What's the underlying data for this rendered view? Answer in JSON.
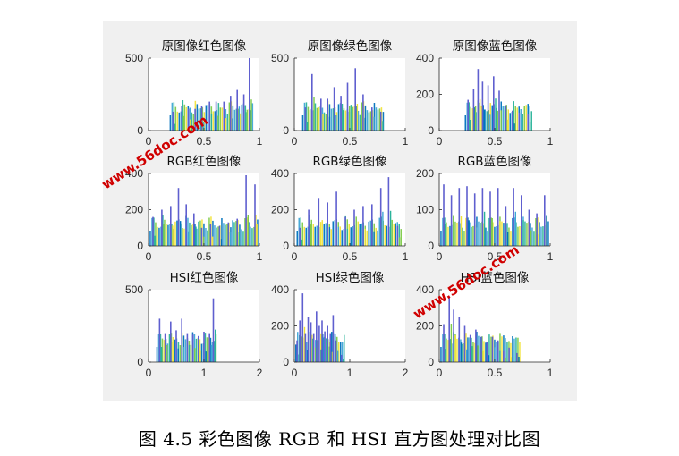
{
  "figure": {
    "background": "#f0f0f0",
    "axes_background": "#ffffff",
    "caption": "图 4.5  彩色图像 RGB 和 HSI 直方图处理对比图",
    "series_colors": [
      "#0072bd",
      "#3fa6d6",
      "#2ab39a",
      "#7ecb4a",
      "#f2e33b",
      "#5f5fcf"
    ],
    "watermark": {
      "text": "www.56doc.com",
      "color": "#d00000"
    }
  },
  "chart_data": [
    {
      "type": "bar",
      "title": "原图像红色图像",
      "xlim": [
        0,
        1
      ],
      "ylim": [
        0,
        500
      ],
      "xticks": [
        "0",
        "0.5",
        "1"
      ],
      "yticks": [
        "0",
        "500"
      ],
      "spikes": [
        [
          0.22,
          130
        ],
        [
          0.3,
          170
        ],
        [
          0.36,
          150
        ],
        [
          0.42,
          150
        ],
        [
          0.48,
          170
        ],
        [
          0.55,
          200
        ],
        [
          0.61,
          200
        ],
        [
          0.68,
          200
        ],
        [
          0.74,
          240
        ],
        [
          0.8,
          280
        ],
        [
          0.86,
          250
        ],
        [
          0.91,
          500
        ]
      ]
    },
    {
      "type": "bar",
      "title": "原图像绿色图像",
      "xlim": [
        0,
        1
      ],
      "ylim": [
        0,
        500
      ],
      "xticks": [
        "0",
        "0.5",
        "1"
      ],
      "yticks": [
        "0",
        "500"
      ],
      "spikes": [
        [
          0.1,
          160
        ],
        [
          0.16,
          390
        ],
        [
          0.24,
          220
        ],
        [
          0.3,
          220
        ],
        [
          0.36,
          300
        ],
        [
          0.42,
          240
        ],
        [
          0.48,
          330
        ],
        [
          0.55,
          430
        ],
        [
          0.62,
          250
        ],
        [
          0.7,
          160
        ],
        [
          0.78,
          130
        ]
      ]
    },
    {
      "type": "bar",
      "title": "原图像蓝色图像",
      "xlim": [
        0,
        1
      ],
      "ylim": [
        0,
        400
      ],
      "xticks": [
        "0",
        "0.5",
        "1"
      ],
      "yticks": [
        "0",
        "200",
        "400"
      ],
      "spikes": [
        [
          0.26,
          170
        ],
        [
          0.31,
          230
        ],
        [
          0.35,
          340
        ],
        [
          0.39,
          270
        ],
        [
          0.44,
          250
        ],
        [
          0.49,
          300
        ],
        [
          0.54,
          220
        ],
        [
          0.6,
          140
        ],
        [
          0.66,
          110
        ],
        [
          0.72,
          100
        ],
        [
          0.8,
          90
        ]
      ]
    },
    {
      "type": "bar",
      "title": "RGB红色图像",
      "xlim": [
        0,
        1
      ],
      "ylim": [
        0,
        400
      ],
      "xticks": [
        "0",
        "0.5",
        "1"
      ],
      "yticks": [
        "0",
        "200",
        "400"
      ],
      "spikes": [
        [
          0.04,
          160
        ],
        [
          0.12,
          200
        ],
        [
          0.2,
          220
        ],
        [
          0.27,
          320
        ],
        [
          0.34,
          230
        ],
        [
          0.41,
          180
        ],
        [
          0.48,
          100
        ],
        [
          0.56,
          120
        ],
        [
          0.64,
          110
        ],
        [
          0.72,
          130
        ],
        [
          0.8,
          150
        ],
        [
          0.88,
          390
        ],
        [
          0.96,
          340
        ]
      ]
    },
    {
      "type": "bar",
      "title": "RGB绿色图像",
      "xlim": [
        0,
        1
      ],
      "ylim": [
        0,
        400
      ],
      "xticks": [
        "0",
        "0.5",
        "1"
      ],
      "yticks": [
        "0",
        "200",
        "400"
      ],
      "spikes": [
        [
          0.05,
          100
        ],
        [
          0.13,
          200
        ],
        [
          0.22,
          260
        ],
        [
          0.3,
          240
        ],
        [
          0.38,
          300
        ],
        [
          0.46,
          160
        ],
        [
          0.54,
          200
        ],
        [
          0.62,
          220
        ],
        [
          0.7,
          230
        ],
        [
          0.78,
          320
        ],
        [
          0.85,
          380
        ],
        [
          0.93,
          110
        ]
      ]
    },
    {
      "type": "bar",
      "title": "RGB蓝色图像",
      "xlim": [
        0,
        1
      ],
      "ylim": [
        0,
        200
      ],
      "xticks": [
        "0",
        "0.5",
        "1"
      ],
      "yticks": [
        "0",
        "100",
        "200"
      ],
      "spikes": [
        [
          0.04,
          170
        ],
        [
          0.11,
          140
        ],
        [
          0.18,
          160
        ],
        [
          0.25,
          165
        ],
        [
          0.32,
          145
        ],
        [
          0.39,
          160
        ],
        [
          0.46,
          150
        ],
        [
          0.53,
          160
        ],
        [
          0.6,
          110
        ],
        [
          0.67,
          160
        ],
        [
          0.74,
          140
        ],
        [
          0.81,
          100
        ],
        [
          0.88,
          90
        ],
        [
          0.95,
          140
        ]
      ]
    },
    {
      "type": "bar",
      "title": "HSI红色图像",
      "xlim": [
        0,
        2
      ],
      "ylim": [
        0,
        500
      ],
      "xticks": [
        "0",
        "1",
        "2"
      ],
      "yticks": [
        "0",
        "500"
      ],
      "spikes": [
        [
          0.2,
          300
        ],
        [
          0.3,
          200
        ],
        [
          0.4,
          280
        ],
        [
          0.5,
          220
        ],
        [
          0.6,
          300
        ],
        [
          0.7,
          200
        ],
        [
          0.8,
          190
        ],
        [
          0.9,
          180
        ],
        [
          1.0,
          210
        ],
        [
          1.1,
          200
        ],
        [
          1.17,
          440
        ]
      ]
    },
    {
      "type": "bar",
      "title": "HSI绿色图像",
      "xlim": [
        0,
        2
      ],
      "ylim": [
        0,
        400
      ],
      "xticks": [
        "0",
        "1",
        "2"
      ],
      "yticks": [
        "0",
        "200",
        "400"
      ],
      "spikes": [
        [
          0.05,
          120
        ],
        [
          0.1,
          230
        ],
        [
          0.15,
          380
        ],
        [
          0.2,
          160
        ],
        [
          0.25,
          250
        ],
        [
          0.3,
          220
        ],
        [
          0.35,
          160
        ],
        [
          0.4,
          280
        ],
        [
          0.45,
          200
        ],
        [
          0.5,
          230
        ],
        [
          0.55,
          170
        ],
        [
          0.6,
          200
        ],
        [
          0.65,
          160
        ],
        [
          0.7,
          260
        ],
        [
          0.75,
          120
        ],
        [
          0.85,
          40
        ]
      ]
    },
    {
      "type": "bar",
      "title": "HSI蓝色图像",
      "xlim": [
        0,
        1
      ],
      "ylim": [
        0,
        400
      ],
      "xticks": [
        "0",
        "0.5",
        "1"
      ],
      "yticks": [
        "0",
        "200",
        "400"
      ],
      "spikes": [
        [
          0.04,
          210
        ],
        [
          0.09,
          360
        ],
        [
          0.13,
          290
        ],
        [
          0.18,
          250
        ],
        [
          0.23,
          200
        ],
        [
          0.28,
          150
        ],
        [
          0.33,
          180
        ],
        [
          0.38,
          140
        ],
        [
          0.43,
          110
        ],
        [
          0.48,
          140
        ],
        [
          0.53,
          120
        ],
        [
          0.58,
          60
        ],
        [
          0.63,
          80
        ],
        [
          0.7,
          50
        ]
      ]
    }
  ]
}
